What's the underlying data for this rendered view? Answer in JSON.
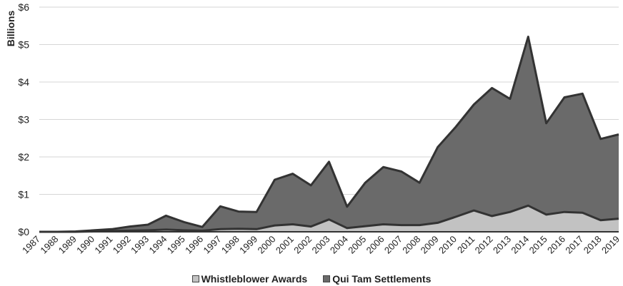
{
  "chart_data": {
    "type": "area",
    "stacked": true,
    "title": "",
    "xlabel": "",
    "ylabel": "Billions",
    "ylim": [
      0,
      6
    ],
    "y_ticks": [
      0,
      1,
      2,
      3,
      4,
      5,
      6
    ],
    "y_tick_labels": [
      "$0",
      "$1",
      "$2",
      "$3",
      "$4",
      "$5",
      "$6"
    ],
    "grid": true,
    "legend_position": "bottom",
    "categories": [
      "1987",
      "1988",
      "1989",
      "1990",
      "1991",
      "1992",
      "1993",
      "1994",
      "1995",
      "1996",
      "1997",
      "1998",
      "1999",
      "2000",
      "2001",
      "2002",
      "2003",
      "2004",
      "2005",
      "2006",
      "2007",
      "2008",
      "2009",
      "2010",
      "2011",
      "2012",
      "2013",
      "2014",
      "2015",
      "2016",
      "2017",
      "2018",
      "2019"
    ],
    "series": [
      {
        "name": "Whistleblower Awards",
        "color": "#c2c2c2",
        "values": [
          0,
          0,
          0,
          0.01,
          0.02,
          0.03,
          0.04,
          0.06,
          0.04,
          0.03,
          0.07,
          0.08,
          0.07,
          0.17,
          0.2,
          0.14,
          0.33,
          0.1,
          0.15,
          0.2,
          0.18,
          0.18,
          0.24,
          0.4,
          0.57,
          0.42,
          0.53,
          0.7,
          0.46,
          0.53,
          0.51,
          0.31,
          0.35
        ]
      },
      {
        "name": "Qui Tam Settlements",
        "color": "#6a6a6a",
        "values": [
          0,
          0,
          0.01,
          0.03,
          0.05,
          0.11,
          0.15,
          0.37,
          0.22,
          0.1,
          0.61,
          0.46,
          0.46,
          1.22,
          1.35,
          1.1,
          1.54,
          0.57,
          1.16,
          1.53,
          1.43,
          1.13,
          2.02,
          2.4,
          2.83,
          3.42,
          3.02,
          4.51,
          2.44,
          3.06,
          3.18,
          2.17,
          2.25
        ]
      }
    ]
  }
}
